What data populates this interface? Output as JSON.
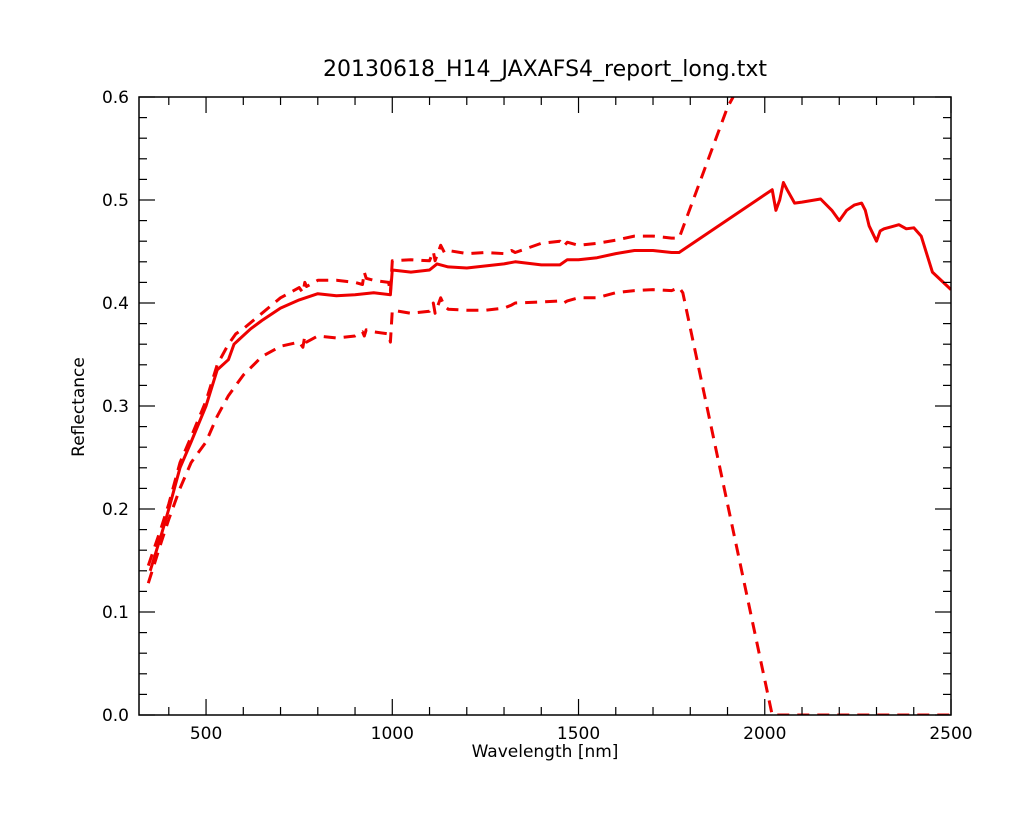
{
  "chart_data": {
    "type": "line",
    "title": "20130618_H14_JAXAFS4_report_long.txt",
    "xlabel": "Wavelength [nm]",
    "ylabel": "Reflectance",
    "xlim": [
      320,
      2500
    ],
    "ylim": [
      0.0,
      0.6
    ],
    "x_ticks": [
      500,
      1000,
      1500,
      2000,
      2500
    ],
    "x_tick_labels": [
      "500",
      "1000",
      "1500",
      "2000",
      "2500"
    ],
    "y_ticks": [
      0.0,
      0.1,
      0.2,
      0.3,
      0.4,
      0.5,
      0.6
    ],
    "y_tick_labels": [
      "0.0",
      "0.1",
      "0.2",
      "0.3",
      "0.4",
      "0.5",
      "0.6"
    ],
    "grid": false,
    "legend": "none",
    "series": [
      {
        "style": "solid",
        "color": "#ee0000",
        "x": [
          350,
          380,
          400,
          430,
          460,
          500,
          530,
          560,
          575,
          590,
          620,
          650,
          700,
          750,
          800,
          850,
          900,
          950,
          995,
          1000,
          1050,
          1100,
          1120,
          1150,
          1200,
          1300,
          1330,
          1400,
          1450,
          1470,
          1500,
          1550,
          1600,
          1650,
          1700,
          1750,
          1770,
          2020,
          2030,
          2040,
          2050,
          2060,
          2080,
          2100,
          2150,
          2180,
          2200,
          2220,
          2240,
          2260,
          2270,
          2280,
          2300,
          2310,
          2320,
          2340,
          2360,
          2380,
          2400,
          2420,
          2450,
          2500
        ],
        "y": [
          0.14,
          0.175,
          0.2,
          0.24,
          0.265,
          0.3,
          0.335,
          0.345,
          0.36,
          0.365,
          0.375,
          0.383,
          0.395,
          0.403,
          0.409,
          0.407,
          0.408,
          0.41,
          0.408,
          0.432,
          0.43,
          0.432,
          0.438,
          0.435,
          0.434,
          0.438,
          0.44,
          0.437,
          0.437,
          0.442,
          0.442,
          0.444,
          0.448,
          0.451,
          0.451,
          0.449,
          0.449,
          0.51,
          0.49,
          0.5,
          0.517,
          0.51,
          0.497,
          0.498,
          0.501,
          0.49,
          0.48,
          0.49,
          0.495,
          0.497,
          0.49,
          0.475,
          0.46,
          0.47,
          0.472,
          0.474,
          0.476,
          0.472,
          0.473,
          0.465,
          0.43,
          0.413
        ]
      },
      {
        "style": "dashed",
        "color": "#ee0000",
        "x": [
          345,
          380,
          400,
          430,
          460,
          500,
          530,
          560,
          580,
          600,
          650,
          700,
          750,
          760,
          765,
          770,
          800,
          850,
          900,
          920,
          925,
          930,
          950,
          990,
          995,
          1000,
          1050,
          1100,
          1110,
          1115,
          1130,
          1140,
          1150,
          1200,
          1250,
          1300,
          1320,
          1330,
          1400,
          1450,
          1460,
          1470,
          1500,
          1550,
          1600,
          1650,
          1700,
          1750,
          1770,
          1900,
          1915
        ],
        "y": [
          0.145,
          0.182,
          0.205,
          0.245,
          0.27,
          0.305,
          0.34,
          0.36,
          0.37,
          0.375,
          0.39,
          0.405,
          0.415,
          0.41,
          0.42,
          0.416,
          0.422,
          0.422,
          0.42,
          0.418,
          0.43,
          0.424,
          0.422,
          0.42,
          0.41,
          0.441,
          0.442,
          0.441,
          0.45,
          0.441,
          0.456,
          0.449,
          0.451,
          0.448,
          0.449,
          0.448,
          0.451,
          0.449,
          0.458,
          0.46,
          0.455,
          0.459,
          0.456,
          0.458,
          0.461,
          0.465,
          0.465,
          0.463,
          0.463,
          0.59,
          0.6
        ]
      },
      {
        "style": "dashed",
        "color": "#ee0000",
        "x": [
          345,
          380,
          400,
          430,
          460,
          500,
          530,
          560,
          580,
          600,
          650,
          700,
          750,
          760,
          765,
          770,
          800,
          850,
          900,
          920,
          925,
          930,
          950,
          990,
          995,
          1000,
          1050,
          1100,
          1110,
          1115,
          1130,
          1140,
          1150,
          1200,
          1250,
          1300,
          1320,
          1330,
          1400,
          1450,
          1460,
          1470,
          1500,
          1550,
          1600,
          1650,
          1700,
          1750,
          1770,
          1780,
          2020,
          2030,
          2500
        ],
        "y": [
          0.128,
          0.168,
          0.19,
          0.22,
          0.245,
          0.265,
          0.29,
          0.31,
          0.32,
          0.33,
          0.348,
          0.358,
          0.362,
          0.357,
          0.368,
          0.362,
          0.368,
          0.366,
          0.368,
          0.372,
          0.368,
          0.374,
          0.372,
          0.37,
          0.362,
          0.393,
          0.39,
          0.392,
          0.4,
          0.39,
          0.405,
          0.397,
          0.394,
          0.393,
          0.393,
          0.395,
          0.398,
          0.4,
          0.401,
          0.402,
          0.4,
          0.402,
          0.405,
          0.405,
          0.41,
          0.412,
          0.413,
          0.412,
          0.415,
          0.41,
          0.0,
          0.0,
          0.0
        ]
      }
    ]
  }
}
